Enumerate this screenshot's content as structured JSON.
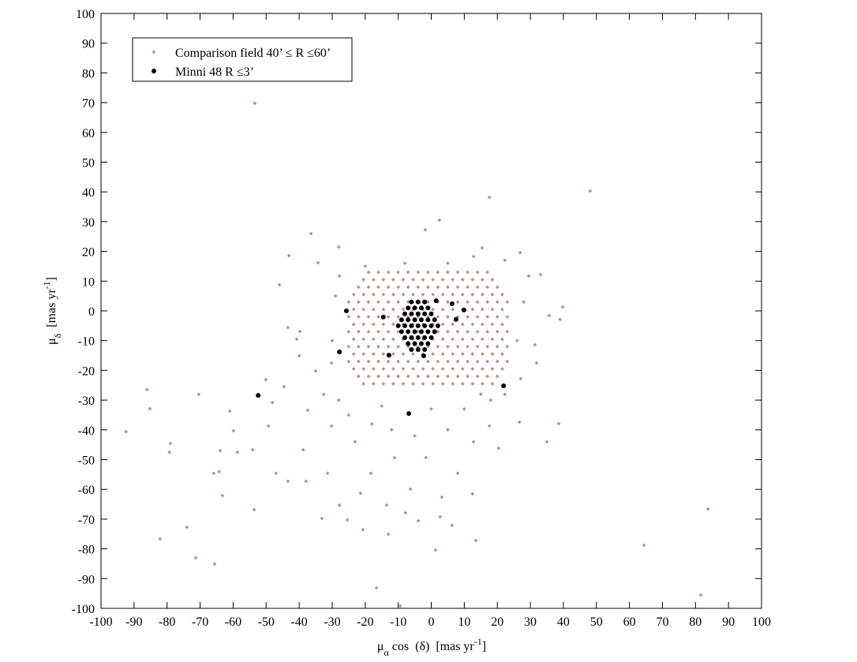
{
  "chart_data": {
    "type": "scatter",
    "x_label": {
      "symbol": "μ",
      "subscript": "α",
      "text": " cos  (δ)  [mas yr",
      "superscript": "-1",
      "close": "]"
    },
    "y_label": {
      "symbol": "μ",
      "subscript": "δ",
      "text": "  [mas yr",
      "superscript": "-1",
      "close": "]"
    },
    "xlim": [
      -100,
      100
    ],
    "ylim": [
      -100,
      100
    ],
    "xticks": [
      -100,
      -90,
      -80,
      -70,
      -60,
      -50,
      -40,
      -30,
      -20,
      -10,
      0,
      10,
      20,
      30,
      40,
      50,
      60,
      70,
      80,
      90,
      100
    ],
    "yticks": [
      -100,
      -90,
      -80,
      -70,
      -60,
      -50,
      -40,
      -30,
      -20,
      -10,
      0,
      10,
      20,
      30,
      40,
      50,
      60,
      70,
      80,
      90,
      100
    ],
    "legend_position": "upper left",
    "series": [
      {
        "name": "Comparison field 40’ ≤ R ≤60’",
        "color": "#bc8f8f",
        "marker": "diamond",
        "x": [
          -19,
          -16,
          -13,
          -10,
          -7,
          -4,
          -1,
          2,
          5,
          8,
          11,
          14,
          17,
          -20.5,
          -17.5,
          -14.5,
          -11.5,
          -8.5,
          -5.5,
          -2.5,
          0.5,
          3.5,
          6.5,
          9.5,
          12.5,
          15.5,
          18.5,
          -22,
          -19,
          -16,
          -13,
          -10,
          -7,
          -4,
          -1,
          2,
          5,
          8,
          11,
          14,
          17,
          20,
          -23.5,
          -20.5,
          -17.5,
          -14.5,
          -11.5,
          -8.5,
          -5.5,
          -2.5,
          0.5,
          3.5,
          6.5,
          9.5,
          12.5,
          15.5,
          18.5,
          21.5,
          -25,
          -22,
          -19,
          -16,
          -13,
          -10,
          -7,
          -4,
          -1,
          2,
          5,
          8,
          11,
          14,
          17,
          20,
          23,
          -23.5,
          -20.5,
          -17.5,
          -14.5,
          -11.5,
          -8.5,
          -5.5,
          -2.5,
          0.5,
          3.5,
          6.5,
          9.5,
          12.5,
          15.5,
          18.5,
          21.5,
          -25,
          -22,
          -19,
          -16,
          -13,
          -10,
          -7,
          -4,
          -1,
          2,
          5,
          8,
          11,
          14,
          17,
          20,
          23,
          -23.5,
          -20.5,
          -17.5,
          -14.5,
          -11.5,
          -8.5,
          -5.5,
          -2.5,
          0.5,
          3.5,
          6.5,
          9.5,
          12.5,
          15.5,
          18.5,
          21.5,
          -25,
          -22,
          -19,
          -16,
          -13,
          -10,
          -7,
          -4,
          -1,
          2,
          5,
          8,
          11,
          14,
          17,
          20,
          23,
          -23.5,
          -20.5,
          -17.5,
          -14.5,
          -11.5,
          -8.5,
          -5.5,
          -2.5,
          0.5,
          3.5,
          6.5,
          9.5,
          12.5,
          15.5,
          18.5,
          21.5,
          -25,
          -22,
          -19,
          -16,
          -13,
          -10,
          -7,
          -4,
          -1,
          2,
          5,
          8,
          11,
          14,
          17,
          20,
          23,
          -23.5,
          -20.5,
          -17.5,
          -14.5,
          -11.5,
          -8.5,
          -5.5,
          -2.5,
          0.5,
          3.5,
          6.5,
          9.5,
          12.5,
          15.5,
          18.5,
          21.5,
          -25,
          -22,
          -19,
          -16,
          -13,
          -10,
          -7,
          -4,
          -1,
          2,
          5,
          8,
          11,
          14,
          17,
          20,
          23,
          -23.5,
          -20.5,
          -17.5,
          -14.5,
          -11.5,
          -8.5,
          -5.5,
          -2.5,
          0.5,
          3.5,
          6.5,
          9.5,
          12.5,
          15.5,
          18.5,
          21.5,
          -22,
          -19,
          -16,
          -13,
          -10,
          -7,
          -4,
          -1,
          2,
          5,
          8,
          11,
          14,
          17,
          20,
          -20.5,
          -17.5,
          -14.5,
          -11.5,
          -8.5,
          -5.5,
          -2.5,
          0.5,
          3.5,
          6.5,
          9.5,
          12.5,
          15.5,
          18.5,
          -53.4,
          48.1,
          17.6,
          2.5,
          -1.8,
          -36.4,
          -28,
          15.4,
          26.9,
          -43.1,
          -34.3,
          33.1,
          -46,
          39.8,
          39,
          -43.4,
          -40.7,
          31.4,
          -40,
          -50.1,
          -86.1,
          -85.2,
          -70.4,
          -92.4,
          -79,
          -79.3,
          -61,
          -59.9,
          -58.7,
          -63.9,
          -64.2,
          -65.9,
          -63.2,
          -53.6,
          -74,
          -82.1,
          -71.3,
          -65.6,
          83.8,
          64.4,
          81.6,
          -16.6,
          -9.4,
          1.3,
          13.5,
          -33.1,
          -25.4,
          -20.7,
          -13,
          -7.8,
          -3.9,
          2.7,
          6.3,
          12.5,
          20.4,
          26.7,
          35,
          38.6,
          -49.3,
          -38.8,
          -31.4,
          -27.8,
          -21.4,
          -47,
          -43.4,
          -54.1,
          -37.9,
          -18.3,
          -1.6,
          8,
          12.8,
          17.6,
          22.3,
          27.1,
          31.9,
          29.5,
          22.3,
          12.8,
          -39.8,
          -35,
          -32.6,
          -37.4,
          -44.6,
          -48.1,
          -30.2,
          -23.1,
          -11.1,
          -6.3,
          3.2,
          -13.5,
          -30.2,
          -27.8,
          35.7,
          -28,
          -25,
          -18,
          -12,
          -5,
          5,
          10,
          18,
          26,
          28,
          -29,
          -30,
          -20,
          -8,
          5,
          0,
          -15,
          15
        ],
        "y": [
          13,
          13,
          13,
          13,
          13,
          13,
          13,
          13,
          13,
          13,
          13,
          13,
          13,
          10.5,
          10.5,
          10.5,
          10.5,
          10.5,
          10.5,
          10.5,
          10.5,
          10.5,
          10.5,
          10.5,
          10.5,
          10.5,
          10.5,
          8,
          8,
          8,
          8,
          8,
          8,
          8,
          8,
          8,
          8,
          8,
          8,
          8,
          8,
          8,
          5.5,
          5.5,
          5.5,
          5.5,
          5.5,
          5.5,
          5.5,
          5.5,
          5.5,
          5.5,
          5.5,
          5.5,
          5.5,
          5.5,
          5.5,
          5.5,
          3,
          3,
          3,
          3,
          3,
          3,
          3,
          3,
          3,
          3,
          3,
          3,
          3,
          3,
          3,
          3,
          3,
          0.5,
          0.5,
          0.5,
          0.5,
          0.5,
          0.5,
          0.5,
          0.5,
          0.5,
          0.5,
          0.5,
          0.5,
          0.5,
          0.5,
          0.5,
          0.5,
          -2,
          -2,
          -2,
          -2,
          -2,
          -2,
          -2,
          -2,
          -2,
          -2,
          -2,
          -2,
          -2,
          -2,
          -2,
          -2,
          -2,
          -4.5,
          -4.5,
          -4.5,
          -4.5,
          -4.5,
          -4.5,
          -4.5,
          -4.5,
          -4.5,
          -4.5,
          -4.5,
          -4.5,
          -4.5,
          -4.5,
          -4.5,
          -4.5,
          -7,
          -7,
          -7,
          -7,
          -7,
          -7,
          -7,
          -7,
          -7,
          -7,
          -7,
          -7,
          -7,
          -7,
          -7,
          -7,
          -7,
          -9.5,
          -9.5,
          -9.5,
          -9.5,
          -9.5,
          -9.5,
          -9.5,
          -9.5,
          -9.5,
          -9.5,
          -9.5,
          -9.5,
          -9.5,
          -9.5,
          -9.5,
          -9.5,
          -12,
          -12,
          -12,
          -12,
          -12,
          -12,
          -12,
          -12,
          -12,
          -12,
          -12,
          -12,
          -12,
          -12,
          -12,
          -12,
          -12,
          -14.5,
          -14.5,
          -14.5,
          -14.5,
          -14.5,
          -14.5,
          -14.5,
          -14.5,
          -14.5,
          -14.5,
          -14.5,
          -14.5,
          -14.5,
          -14.5,
          -14.5,
          -14.5,
          -17,
          -17,
          -17,
          -17,
          -17,
          -17,
          -17,
          -17,
          -17,
          -17,
          -17,
          -17,
          -17,
          -17,
          -17,
          -17,
          -17,
          -19.5,
          -19.5,
          -19.5,
          -19.5,
          -19.5,
          -19.5,
          -19.5,
          -19.5,
          -19.5,
          -19.5,
          -19.5,
          -19.5,
          -19.5,
          -19.5,
          -19.5,
          -19.5,
          -22,
          -22,
          -22,
          -22,
          -22,
          -22,
          -22,
          -22,
          -22,
          -22,
          -22,
          -22,
          -22,
          -22,
          -22,
          -24.5,
          -24.5,
          -24.5,
          -24.5,
          -24.5,
          -24.5,
          -24.5,
          -24.5,
          -24.5,
          -24.5,
          -24.5,
          -24.5,
          -24.5,
          -24.5,
          69.8,
          40.3,
          38.2,
          30.5,
          27.3,
          26,
          21.5,
          21.2,
          19.6,
          18.6,
          16.2,
          12.2,
          8.8,
          1.3,
          -2.9,
          -5.6,
          -9.5,
          -11.4,
          -15.1,
          -23.1,
          -26.5,
          -32.9,
          -28.1,
          -40.6,
          -44.6,
          -47.5,
          -33.7,
          -40.3,
          -47.5,
          -47,
          -54.1,
          -54.6,
          -62.1,
          -66.8,
          -72.7,
          -76.7,
          -83,
          -85.1,
          -66.6,
          -78.8,
          -95.5,
          -93.1,
          -99.2,
          -80.4,
          -77.2,
          -69.8,
          -70.3,
          -73.5,
          -75.1,
          -67.9,
          -70.6,
          -69.2,
          -72.1,
          -61.5,
          -46.2,
          -37.4,
          -44,
          -37.9,
          -38.7,
          -46.7,
          -54.6,
          -65.3,
          -61.3,
          -54.6,
          -57.3,
          -46.7,
          -57.3,
          -54.6,
          -49.3,
          -54.6,
          -44,
          -38.7,
          -28.1,
          -22.8,
          -17.5,
          11.7,
          17,
          18.3,
          -6.9,
          -20.2,
          -28.1,
          -33.4,
          -25.5,
          -30.8,
          -38.7,
          -44,
          -49.3,
          -59.9,
          -62.6,
          -65.3,
          -17.5,
          11.7,
          -1.6,
          -30,
          -35,
          -38,
          -40,
          -42,
          -40,
          -33,
          -30,
          -10,
          3,
          5,
          -10,
          15,
          16,
          16,
          -33,
          -32,
          -28
        ]
      },
      {
        "name": "Minni 48 R ≤3’",
        "color": "#000000",
        "marker": "circle",
        "x": [
          -6,
          -4,
          -2,
          -7,
          -5,
          -3,
          -1,
          -8,
          -6,
          -4,
          -2,
          0,
          -9,
          -7,
          -5,
          -3,
          -1,
          1,
          -10,
          -8,
          -6,
          -4,
          -2,
          0,
          2,
          -9,
          -7,
          -5,
          -3,
          -1,
          1,
          -8,
          -6,
          -4,
          -2,
          0,
          -7,
          -5,
          -3,
          -1,
          -6,
          -4,
          -2,
          -25.7,
          -27.8,
          -52.4,
          21.9,
          -6.8,
          -12.8,
          -14.5,
          9.9,
          6.3,
          7.5,
          1.5,
          -2.3
        ],
        "y": [
          3,
          3,
          3,
          1,
          1,
          1,
          1,
          -1,
          -1,
          -1,
          -1,
          -1,
          -3,
          -3,
          -3,
          -3,
          -3,
          -3,
          -5,
          -5,
          -5,
          -5,
          -5,
          -5,
          -5,
          -7,
          -7,
          -7,
          -7,
          -7,
          -7,
          -9,
          -9,
          -9,
          -9,
          -9,
          -11,
          -11,
          -11,
          -11,
          -13,
          -13,
          -13,
          0,
          -13.8,
          -28.4,
          -25.2,
          -34.5,
          -14.9,
          -2.1,
          0.3,
          2.4,
          -2.9,
          3.4,
          -15.1
        ]
      }
    ]
  }
}
